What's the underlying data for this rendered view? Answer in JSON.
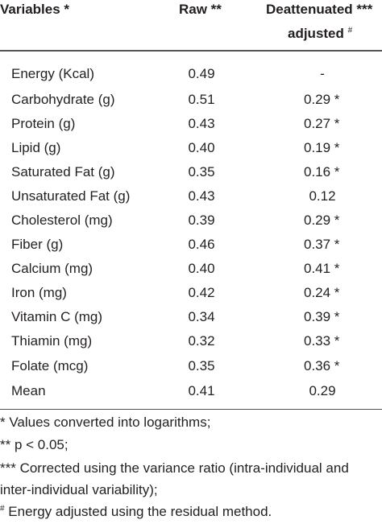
{
  "table": {
    "header": {
      "columns": [
        "Variables *",
        "Raw **",
        "Deattenuated ***"
      ],
      "subline": "adjusted",
      "subline_mark": "#"
    },
    "rows": [
      [
        "Energy (Kcal)",
        "0.49",
        "-"
      ],
      [
        "Carbohydrate (g)",
        "0.51",
        "0.29 *"
      ],
      [
        "Protein (g)",
        "0.43",
        "0.27 *"
      ],
      [
        "Lipid (g)",
        "0.40",
        "0.19 *"
      ],
      [
        "Saturated Fat (g)",
        "0.35",
        "0.16 *"
      ],
      [
        "Unsaturated Fat (g)",
        "0.43",
        "0.12"
      ],
      [
        "Cholesterol (mg)",
        "0.39",
        "0.29 *"
      ],
      [
        "Fiber (g)",
        "0.46",
        "0.37 *"
      ],
      [
        "Calcium (mg)",
        "0.40",
        "0.41 *"
      ],
      [
        "Iron (mg)",
        "0.42",
        "0.24 *"
      ],
      [
        "Vitamin C (mg)",
        "0.34",
        "0.39 *"
      ],
      [
        "Thiamin (mg)",
        "0.32",
        "0.33 *"
      ],
      [
        "Folate (mcg)",
        "0.35",
        "0.36 *"
      ],
      [
        "Mean",
        "0.41",
        "0.29"
      ]
    ],
    "footnotes": [
      {
        "text": "* Values converted into logarithms;"
      },
      {
        "text": "** p < 0.05;"
      },
      {
        "text": "*** Corrected using the variance ratio (intra-individual and"
      },
      {
        "text": "inter-individual variability);"
      },
      {
        "mark": "#",
        "text": " Energy adjusted using the residual method."
      }
    ]
  }
}
